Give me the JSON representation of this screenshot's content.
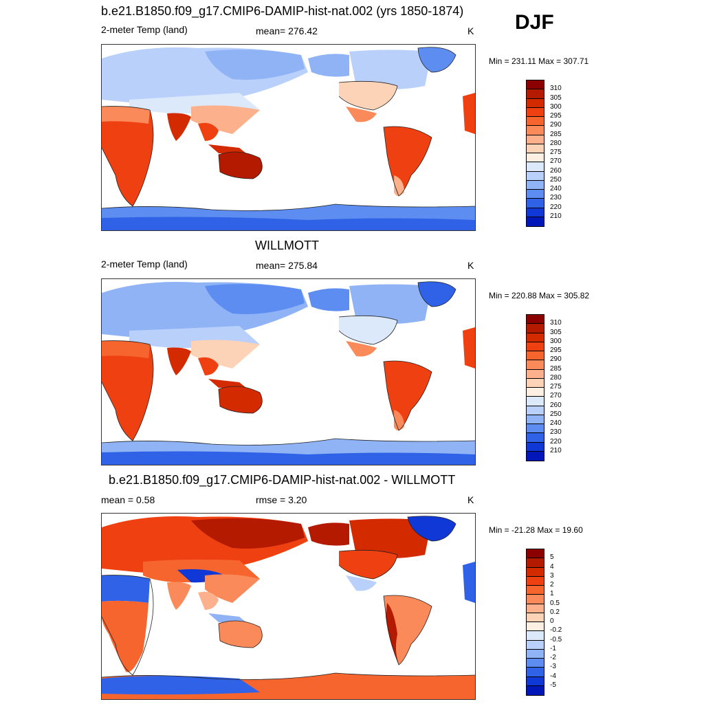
{
  "season": "DJF",
  "panels": [
    {
      "title": "b.e21.B1850.f09_g17.CMIP6-DAMIP-hist-nat.002 (yrs 1850-1874)",
      "left": "2-meter Temp (land)",
      "center": "mean= 276.42",
      "units": "K",
      "minmax": "Min = 231.11 Max = 307.71",
      "scale": "temp"
    },
    {
      "title": "WILLMOTT",
      "left": "2-meter Temp (land)",
      "center": "mean= 275.84",
      "units": "K",
      "minmax": "Min = 220.88 Max = 305.82",
      "scale": "temp"
    },
    {
      "title": "b.e21.B1850.f09_g17.CMIP6-DAMIP-hist-nat.002 - WILLMOTT",
      "left": "mean =   0.58",
      "center": "rmse =   3.20",
      "units": "K",
      "minmax": "Min = -21.28 Max =  19.60",
      "scale": "diff"
    }
  ],
  "colorbars": {
    "temp": {
      "labels": [
        "310",
        "305",
        "300",
        "295",
        "290",
        "285",
        "280",
        "275",
        "270",
        "260",
        "250",
        "240",
        "230",
        "220",
        "210"
      ],
      "colors": [
        "#8b0000",
        "#b31a00",
        "#d42a00",
        "#ee4010",
        "#f7652e",
        "#fa8a5a",
        "#fcb08c",
        "#fdd3b8",
        "#fdf0e3",
        "#dce9fb",
        "#b8d0fa",
        "#8fb3f5",
        "#5d8df0",
        "#2f62e6",
        "#1038d6",
        "#0016b8"
      ]
    },
    "diff": {
      "labels": [
        "5",
        "4",
        "3",
        "2",
        "1",
        "0.5",
        "0.2",
        "0",
        "-0.2",
        "-0.5",
        "-1",
        "-2",
        "-3",
        "-4",
        "-5"
      ],
      "colors": [
        "#8b0000",
        "#b31a00",
        "#d42a00",
        "#ee4010",
        "#f7652e",
        "#fa8a5a",
        "#fcb08c",
        "#fdd3b8",
        "#fdf0e3",
        "#dce9fb",
        "#b8d0fa",
        "#8fb3f5",
        "#5d8df0",
        "#2f62e6",
        "#1038d6",
        "#0016b8"
      ]
    }
  }
}
